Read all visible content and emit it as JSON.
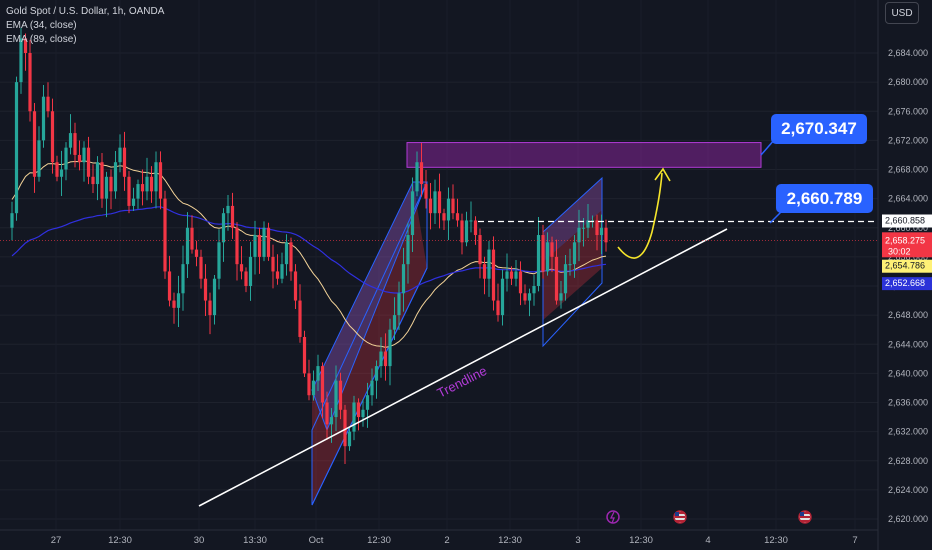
{
  "legend": {
    "symbol": "Gold Spot / U.S. Dollar, 1h, OANDA",
    "ema1": "EMA (34, close)",
    "ema2": "EMA (89, close)"
  },
  "currency_button": "USD",
  "callouts": {
    "upper": "2,670.347",
    "lower": "2,660.789"
  },
  "trendline_label": "Trendline",
  "price_tags": {
    "level": "2,660.858",
    "last_price": "2,658.275",
    "countdown": "30:02",
    "ema34": "2,654.786",
    "ema89": "2,652.668"
  },
  "colors": {
    "bull": "#26a69a",
    "bear": "#f23645",
    "ema34": "#f3d398",
    "ema89": "#3030e0",
    "zone": "#9c27b0",
    "accent": "#2962ff",
    "arrow": "#f5e52b"
  },
  "chart_data": {
    "type": "candlestick",
    "title": "Gold Spot / U.S. Dollar, 1h, OANDA",
    "y_ticks": [
      "2,620.000",
      "2,624.000",
      "2,628.000",
      "2,632.000",
      "2,636.000",
      "2,640.000",
      "2,644.000",
      "2,648.000",
      "2,652.000",
      "2,656.000",
      "2,660.000",
      "2,664.000",
      "2,668.000",
      "2,672.000",
      "2,676.000",
      "2,680.000",
      "2,684.000"
    ],
    "x_ticks": [
      "27",
      "12:30",
      "30",
      "13:30",
      "Oct",
      "12:30",
      "2",
      "12:30",
      "3",
      "12:30",
      "4",
      "12:30",
      "7"
    ],
    "ylim": [
      2619,
      2688
    ],
    "zone": [
      2668.3,
      2671.7
    ],
    "dashed_level": 2660.858,
    "last_price": 2658.275,
    "ema34_last": 2654.786,
    "ema89_last": 2652.668,
    "closes": [
      2662,
      2680,
      2686,
      2684,
      2676,
      2667,
      2672,
      2678,
      2676,
      2669,
      2667,
      2668,
      2671,
      2673,
      2670,
      2669,
      2671,
      2667,
      2666,
      2669,
      2664,
      2667,
      2665,
      2669,
      2671,
      2667,
      2663,
      2664,
      2666,
      2665,
      2667,
      2665,
      2669,
      2664,
      2654,
      2650,
      2649,
      2651,
      2655,
      2660,
      2657,
      2656,
      2653,
      2650,
      2648,
      2653,
      2658,
      2662,
      2663,
      2660,
      2655,
      2654,
      2652,
      2656,
      2659,
      2656,
      2660,
      2656,
      2654,
      2653,
      2655,
      2658,
      2654,
      2650,
      2645,
      2640,
      2637,
      2639,
      2641,
      2636,
      2633,
      2634,
      2639,
      2635,
      2630,
      2632,
      2636,
      2634,
      2635,
      2637,
      2639,
      2641,
      2643,
      2641,
      2646,
      2648,
      2651,
      2655,
      2659,
      2665,
      2669,
      2666,
      2664,
      2662,
      2665,
      2662,
      2661,
      2664,
      2662,
      2661,
      2658,
      2661,
      2661,
      2659,
      2655,
      2653,
      2657,
      2650,
      2648,
      2653,
      2654,
      2653,
      2654,
      2651,
      2650,
      2651,
      2652,
      2659,
      2654,
      2658,
      2656,
      2650,
      2651,
      2655,
      2655,
      2658,
      2660,
      2660,
      2661,
      2661,
      2659,
      2660,
      2658
    ]
  }
}
